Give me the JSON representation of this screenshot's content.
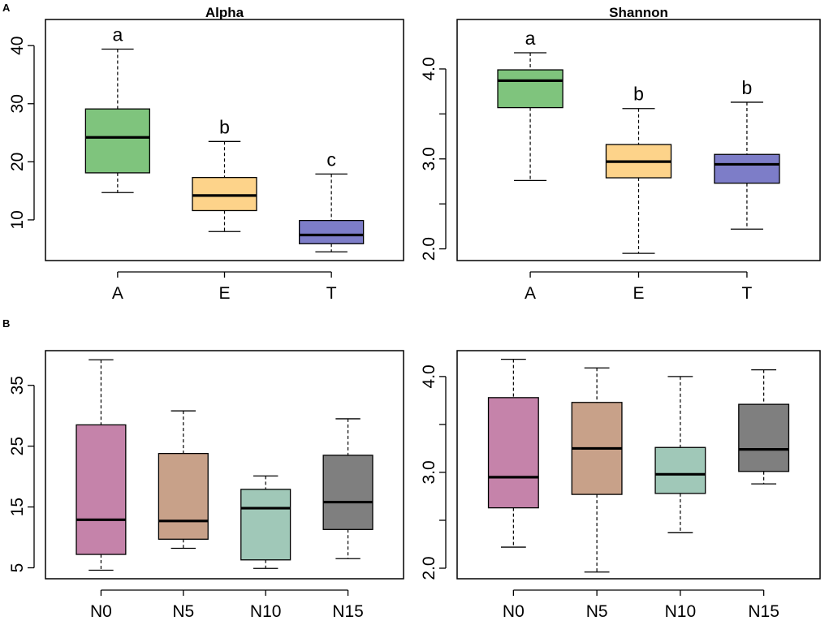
{
  "figure": {
    "panel_a_label": "A",
    "panel_b_label": "B"
  },
  "chart_data": [
    {
      "id": "a-alpha",
      "type": "boxplot",
      "title": "Alpha",
      "categories": [
        "A",
        "E",
        "T"
      ],
      "boxes": [
        {
          "min": 14.7,
          "q1": 18.1,
          "median": 24.2,
          "q3": 29.1,
          "max": 39.4,
          "color": "#7fc47d"
        },
        {
          "min": 8.0,
          "q1": 11.6,
          "median": 14.2,
          "q3": 17.3,
          "max": 23.5,
          "color": "#fdd38a"
        },
        {
          "min": 4.5,
          "q1": 5.9,
          "median": 7.4,
          "q3": 9.9,
          "max": 17.9,
          "color": "#7d7dc8"
        }
      ],
      "significance": [
        "a",
        "b",
        "c"
      ],
      "yticks": [
        10,
        20,
        30,
        40
      ],
      "ytick_labels": [
        "10",
        "20",
        "30",
        "40"
      ],
      "ylim": [
        3.0,
        44.5
      ]
    },
    {
      "id": "a-shannon",
      "type": "boxplot",
      "title": "Shannon",
      "categories": [
        "A",
        "E",
        "T"
      ],
      "boxes": [
        {
          "min": 2.76,
          "q1": 3.57,
          "median": 3.87,
          "q3": 3.99,
          "max": 4.18,
          "color": "#7fc47d"
        },
        {
          "min": 1.95,
          "q1": 2.79,
          "median": 2.97,
          "q3": 3.16,
          "max": 3.56,
          "color": "#fdd38a"
        },
        {
          "min": 2.22,
          "q1": 2.73,
          "median": 2.94,
          "q3": 3.05,
          "max": 3.63,
          "color": "#7d7dc8"
        }
      ],
      "significance": [
        "a",
        "b",
        "b"
      ],
      "yticks": [
        2.0,
        2.5,
        3.0,
        3.5,
        4.0
      ],
      "ytick_labels": [
        "2.0",
        "",
        "3.0",
        "",
        "4.0"
      ],
      "ylim": [
        1.87,
        4.55
      ]
    },
    {
      "id": "b-alpha",
      "type": "boxplot",
      "title": "",
      "categories": [
        "N0",
        "N5",
        "N10",
        "N15"
      ],
      "boxes": [
        {
          "min": 4.6,
          "q1": 7.2,
          "median": 12.9,
          "q3": 28.5,
          "max": 39.2,
          "color": "#c583aa"
        },
        {
          "min": 8.2,
          "q1": 9.7,
          "median": 12.7,
          "q3": 23.8,
          "max": 30.8,
          "color": "#c8a189"
        },
        {
          "min": 4.9,
          "q1": 6.3,
          "median": 14.8,
          "q3": 17.9,
          "max": 20.1,
          "color": "#a0c8b8"
        },
        {
          "min": 6.5,
          "q1": 11.3,
          "median": 15.8,
          "q3": 23.5,
          "max": 29.5,
          "color": "#7f7f7f"
        }
      ],
      "significance": [],
      "yticks": [
        5,
        15,
        25,
        35
      ],
      "ytick_labels": [
        "5",
        "15",
        "25",
        "35"
      ],
      "ylim": [
        3.2,
        40.7
      ]
    },
    {
      "id": "b-shannon",
      "type": "boxplot",
      "title": "",
      "categories": [
        "N0",
        "N5",
        "N10",
        "N15"
      ],
      "boxes": [
        {
          "min": 2.22,
          "q1": 2.63,
          "median": 2.95,
          "q3": 3.78,
          "max": 4.18,
          "color": "#c583aa"
        },
        {
          "min": 1.96,
          "q1": 2.77,
          "median": 3.25,
          "q3": 3.73,
          "max": 4.09,
          "color": "#c8a189"
        },
        {
          "min": 2.37,
          "q1": 2.78,
          "median": 2.98,
          "q3": 3.26,
          "max": 4.0,
          "color": "#a0c8b8"
        },
        {
          "min": 2.88,
          "q1": 3.01,
          "median": 3.24,
          "q3": 3.71,
          "max": 4.07,
          "color": "#7f7f7f"
        }
      ],
      "significance": [],
      "yticks": [
        2.0,
        2.5,
        3.0,
        3.5,
        4.0
      ],
      "ytick_labels": [
        "2.0",
        "",
        "3.0",
        "",
        "4.0"
      ],
      "ylim": [
        1.89,
        4.27
      ]
    }
  ]
}
